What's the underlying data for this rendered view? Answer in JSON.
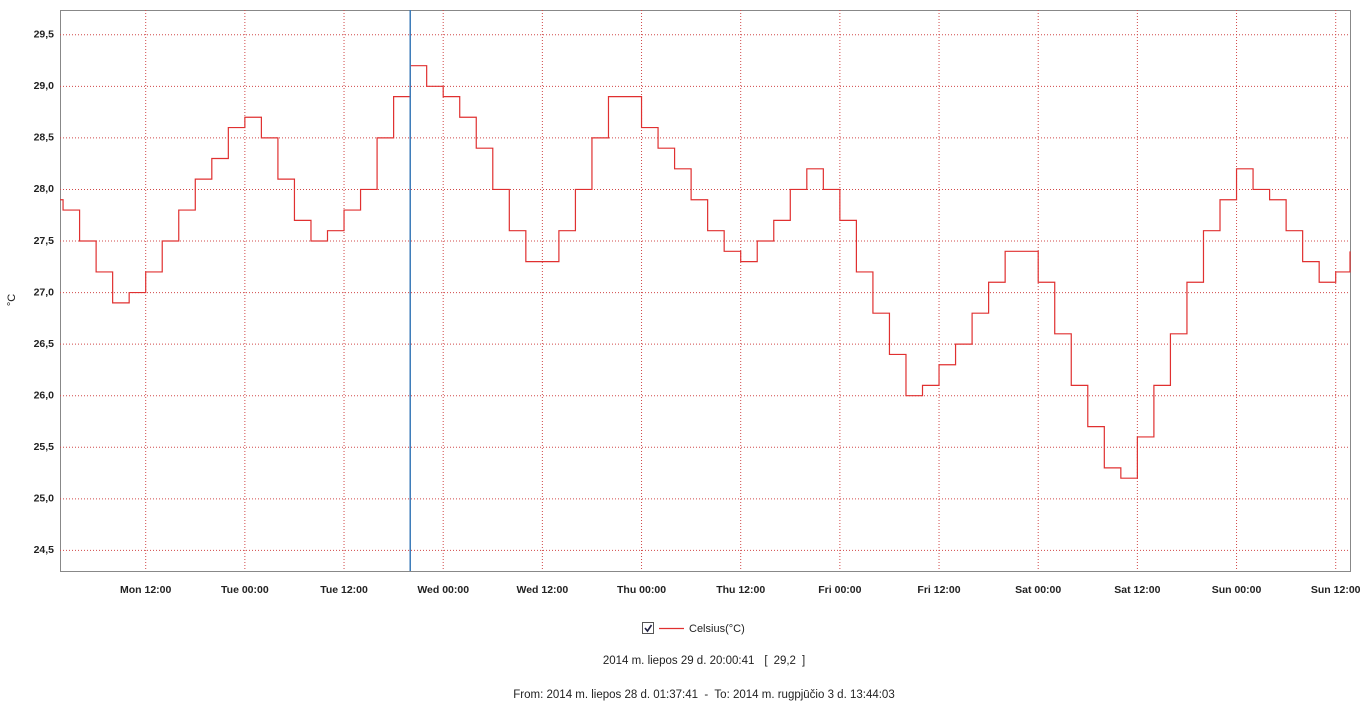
{
  "chart_data": {
    "type": "line",
    "y_label": "°C",
    "x": [
      1.63,
      2,
      4,
      6,
      8,
      10,
      12,
      14,
      16,
      18,
      20,
      22,
      24,
      26,
      28,
      30,
      32,
      34,
      36,
      38,
      40,
      42,
      44,
      46,
      48,
      50,
      52,
      54,
      56,
      58,
      60,
      62,
      64,
      66,
      68,
      70,
      72,
      74,
      76,
      78,
      80,
      82,
      84,
      86,
      88,
      90,
      92,
      94,
      96,
      98,
      100,
      102,
      104,
      106,
      108,
      110,
      112,
      114,
      116,
      118,
      120,
      122,
      124,
      126,
      128,
      130,
      132,
      134,
      136,
      138,
      140,
      142,
      144,
      146,
      148,
      150,
      152,
      154,
      156,
      157.73
    ],
    "series": [
      {
        "name": "Celsius(°C)",
        "color": "#e03030",
        "values": [
          27.9,
          27.8,
          27.5,
          27.2,
          26.9,
          27.0,
          27.2,
          27.5,
          27.8,
          28.1,
          28.3,
          28.6,
          28.7,
          28.5,
          28.1,
          27.7,
          27.5,
          27.6,
          27.8,
          28.0,
          28.5,
          28.9,
          29.2,
          29.0,
          28.9,
          28.7,
          28.4,
          28.0,
          27.6,
          27.3,
          27.3,
          27.6,
          28.0,
          28.5,
          28.9,
          28.9,
          28.6,
          28.4,
          28.2,
          27.9,
          27.6,
          27.4,
          27.3,
          27.5,
          27.7,
          28.0,
          28.2,
          28.0,
          27.7,
          27.2,
          26.8,
          26.4,
          26.0,
          26.1,
          26.3,
          26.5,
          26.8,
          27.1,
          27.4,
          27.4,
          27.1,
          26.6,
          26.1,
          25.7,
          25.3,
          25.2,
          25.6,
          26.1,
          26.6,
          27.1,
          27.6,
          27.9,
          28.2,
          28.0,
          27.9,
          27.6,
          27.3,
          27.1,
          27.2,
          27.4
        ]
      }
    ],
    "xlim": [
      1.63,
      157.73
    ],
    "xticks": [
      {
        "value": 12,
        "label": "Mon 12:00"
      },
      {
        "value": 24,
        "label": "Tue 00:00"
      },
      {
        "value": 36,
        "label": "Tue 12:00"
      },
      {
        "value": 48,
        "label": "Wed 00:00"
      },
      {
        "value": 60,
        "label": "Wed 12:00"
      },
      {
        "value": 72,
        "label": "Thu 00:00"
      },
      {
        "value": 84,
        "label": "Thu 12:00"
      },
      {
        "value": 96,
        "label": "Fri 00:00"
      },
      {
        "value": 108,
        "label": "Fri 12:00"
      },
      {
        "value": 120,
        "label": "Sat 00:00"
      },
      {
        "value": 132,
        "label": "Sat 12:00"
      },
      {
        "value": 144,
        "label": "Sun 00:00"
      },
      {
        "value": 156,
        "label": "Sun 12:00"
      }
    ],
    "ylim": [
      24.3,
      29.74
    ],
    "yticks": [
      {
        "value": 24.5,
        "label": "24,5"
      },
      {
        "value": 25,
        "label": "25,0"
      },
      {
        "value": 25.5,
        "label": "25,5"
      },
      {
        "value": 26,
        "label": "26,0"
      },
      {
        "value": 26.5,
        "label": "26,5"
      },
      {
        "value": 27,
        "label": "27,0"
      },
      {
        "value": 27.5,
        "label": "27,5"
      },
      {
        "value": 28,
        "label": "28,0"
      },
      {
        "value": 28.5,
        "label": "28,5"
      },
      {
        "value": 29,
        "label": "29,0"
      },
      {
        "value": 29.5,
        "label": "29,5"
      }
    ],
    "grid": true,
    "cursor": {
      "x": 44.01,
      "color": "#3a7ab8",
      "time": "2014 m. liepos 29 d. 20:00:41",
      "open": "[",
      "value": 29.2,
      "value_label": "29,2",
      "close": "]"
    },
    "range": "From: 2014 m. liepos 28 d. 01:37:41  -  To: 2014 m. rugpjūčio 3 d. 13:44:03"
  }
}
